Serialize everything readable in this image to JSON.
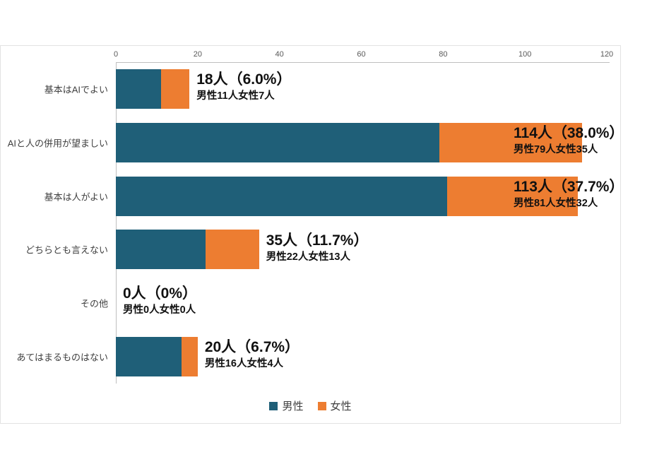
{
  "chart_data": {
    "type": "bar",
    "orientation": "horizontal",
    "stacked": true,
    "title": "",
    "categories": [
      "基本はAIでよい",
      "AIと人の併用が望ましい",
      "基本は人がよい",
      "どちらとも言えない",
      "その他",
      "あてはまるものはない"
    ],
    "series": [
      {
        "name": "男性",
        "color": "#1F5F78",
        "values": [
          11,
          79,
          81,
          22,
          0,
          16
        ]
      },
      {
        "name": "女性",
        "color": "#ED7D31",
        "values": [
          7,
          35,
          32,
          13,
          0,
          4
        ]
      }
    ],
    "totals": [
      18,
      114,
      113,
      35,
      0,
      20
    ],
    "value_labels": [
      {
        "main": "18人（6.0%）",
        "sub": "男性11人女性7人"
      },
      {
        "main": "114人（38.0%）",
        "sub": "男性79人女性35人"
      },
      {
        "main": "113人（37.7%）",
        "sub": "男性81人女性32人"
      },
      {
        "main": "35人（11.7%）",
        "sub": "男性22人女性13人"
      },
      {
        "main": "0人（0%）",
        "sub": "男性0人女性0人"
      },
      {
        "main": "20人（6.7%）",
        "sub": "男性16人女性4人"
      }
    ],
    "x_axis": {
      "min": 0,
      "max": 120,
      "ticks": [
        "0",
        "20",
        "40",
        "60",
        "80",
        "100",
        "120"
      ]
    },
    "legend": {
      "position": "bottom",
      "items": [
        {
          "label": "男性",
          "color": "#1F5F78"
        },
        {
          "label": "女性",
          "color": "#ED7D31"
        }
      ]
    },
    "grid": false
  }
}
